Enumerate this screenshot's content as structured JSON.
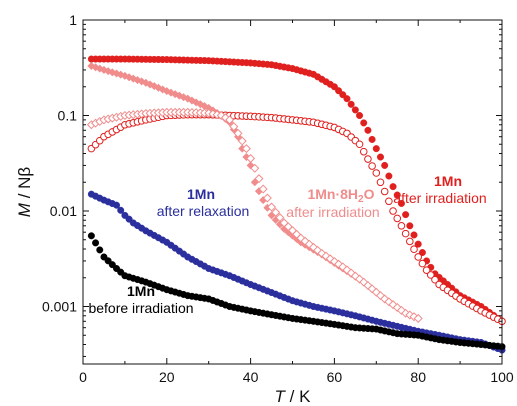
{
  "chart_data": {
    "type": "scatter",
    "title": "",
    "xlabel": {
      "var": "T",
      "unit": " / K"
    },
    "ylabel": {
      "var": "M",
      "unit": " / Nβ"
    },
    "xlim": [
      0,
      100
    ],
    "ylim": [
      0.00025,
      1
    ],
    "yscale": "log",
    "grid": false,
    "x_ticks": [
      0,
      20,
      40,
      60,
      80,
      100
    ],
    "x_tick_labels": [
      "0",
      "20",
      "40",
      "60",
      "80",
      "100"
    ],
    "y_ticks": [
      0.001,
      0.01,
      0.1,
      1
    ],
    "y_tick_labels": [
      "0.001",
      "0.01",
      "0.1",
      "1"
    ],
    "annotations": [
      {
        "id": "before",
        "bold": "1Mn",
        "text": "before irradiation",
        "color": "#000000"
      },
      {
        "id": "relax",
        "bold": "1Mn",
        "text": "after relaxation",
        "color": "#2b2f9e"
      },
      {
        "id": "hydrate",
        "bold_main": "1Mn·8H",
        "bold_sub": "2",
        "bold_tail": "O",
        "text": "after irradiation",
        "color": "#f08c8c"
      },
      {
        "id": "irr",
        "bold": "1Mn",
        "text": "after irradiation",
        "color": "#e0201e"
      }
    ],
    "series": [
      {
        "id": "1mn-irr-filled",
        "color": "#e0201e",
        "marker": "circle-filled",
        "points": [
          [
            2,
            0.39
          ],
          [
            10,
            0.39
          ],
          [
            20,
            0.385
          ],
          [
            30,
            0.375
          ],
          [
            40,
            0.355
          ],
          [
            45,
            0.34
          ],
          [
            50,
            0.31
          ],
          [
            55,
            0.27
          ],
          [
            60,
            0.2
          ],
          [
            63,
            0.15
          ],
          [
            66,
            0.1
          ],
          [
            68,
            0.07
          ],
          [
            70,
            0.045
          ],
          [
            72,
            0.03
          ],
          [
            74,
            0.018
          ],
          [
            76,
            0.012
          ],
          [
            78,
            0.007
          ],
          [
            80,
            0.0045
          ],
          [
            82,
            0.003
          ],
          [
            84,
            0.0022
          ],
          [
            87,
            0.0017
          ],
          [
            90,
            0.0013
          ],
          [
            95,
            0.001
          ],
          [
            100,
            0.0007
          ]
        ]
      },
      {
        "id": "1mn-irr-open",
        "color": "#e0201e",
        "marker": "circle-open",
        "points": [
          [
            2,
            0.045
          ],
          [
            5,
            0.06
          ],
          [
            10,
            0.08
          ],
          [
            15,
            0.09
          ],
          [
            20,
            0.1
          ],
          [
            25,
            0.102
          ],
          [
            30,
            0.102
          ],
          [
            35,
            0.1
          ],
          [
            40,
            0.098
          ],
          [
            45,
            0.095
          ],
          [
            50,
            0.09
          ],
          [
            55,
            0.085
          ],
          [
            60,
            0.075
          ],
          [
            63,
            0.065
          ],
          [
            66,
            0.05
          ],
          [
            68,
            0.035
          ],
          [
            70,
            0.025
          ],
          [
            72,
            0.016
          ],
          [
            74,
            0.01
          ],
          [
            76,
            0.007
          ],
          [
            78,
            0.0048
          ],
          [
            80,
            0.0033
          ],
          [
            82,
            0.0024
          ],
          [
            85,
            0.0017
          ],
          [
            90,
            0.0012
          ],
          [
            95,
            0.0009
          ],
          [
            100,
            0.0007
          ]
        ]
      },
      {
        "id": "hydrate-irr-filled",
        "color": "#f08c8c",
        "marker": "diamond-filled",
        "points": [
          [
            2,
            0.33
          ],
          [
            5,
            0.3
          ],
          [
            10,
            0.26
          ],
          [
            15,
            0.22
          ],
          [
            20,
            0.18
          ],
          [
            25,
            0.15
          ],
          [
            30,
            0.12
          ],
          [
            33,
            0.1
          ],
          [
            35,
            0.085
          ],
          [
            37,
            0.06
          ],
          [
            38,
            0.045
          ],
          [
            40,
            0.03
          ],
          [
            41,
            0.02
          ],
          [
            43,
            0.013
          ],
          [
            45,
            0.009
          ],
          [
            48,
            0.0065
          ],
          [
            52,
            0.0047
          ],
          [
            57,
            0.0035
          ],
          [
            62,
            0.0025
          ],
          [
            67,
            0.0018
          ],
          [
            72,
            0.0012
          ],
          [
            77,
            0.00085
          ],
          [
            80,
            0.00075
          ]
        ]
      },
      {
        "id": "hydrate-irr-open",
        "color": "#f08c8c",
        "marker": "diamond-open",
        "points": [
          [
            2,
            0.08
          ],
          [
            5,
            0.09
          ],
          [
            10,
            0.1
          ],
          [
            15,
            0.105
          ],
          [
            20,
            0.108
          ],
          [
            25,
            0.108
          ],
          [
            30,
            0.106
          ],
          [
            33,
            0.1
          ],
          [
            35,
            0.09
          ],
          [
            37,
            0.065
          ],
          [
            39,
            0.045
          ],
          [
            41,
            0.028
          ],
          [
            43,
            0.017
          ],
          [
            45,
            0.011
          ],
          [
            48,
            0.0075
          ],
          [
            52,
            0.0052
          ],
          [
            57,
            0.0036
          ],
          [
            62,
            0.0026
          ],
          [
            67,
            0.0018
          ],
          [
            72,
            0.0012
          ],
          [
            77,
            0.00085
          ],
          [
            80,
            0.00075
          ]
        ]
      },
      {
        "id": "1mn-relax",
        "color": "#2b2f9e",
        "marker": "circle-filled",
        "points": [
          [
            2,
            0.015
          ],
          [
            5,
            0.013
          ],
          [
            8,
            0.0115
          ],
          [
            10,
            0.009
          ],
          [
            12,
            0.0075
          ],
          [
            15,
            0.0062
          ],
          [
            20,
            0.0047
          ],
          [
            25,
            0.0033
          ],
          [
            30,
            0.0025
          ],
          [
            35,
            0.0021
          ],
          [
            40,
            0.0017
          ],
          [
            45,
            0.0014
          ],
          [
            50,
            0.00115
          ],
          [
            55,
            0.001
          ],
          [
            60,
            0.0009
          ],
          [
            65,
            0.0008
          ],
          [
            70,
            0.0007
          ],
          [
            75,
            0.00062
          ],
          [
            80,
            0.00055
          ],
          [
            85,
            0.0005
          ],
          [
            90,
            0.00045
          ],
          [
            95,
            0.00042
          ],
          [
            100,
            0.00035
          ]
        ]
      },
      {
        "id": "1mn-before",
        "color": "#000000",
        "marker": "circle-filled",
        "points": [
          [
            2,
            0.0055
          ],
          [
            5,
            0.0033
          ],
          [
            8,
            0.0025
          ],
          [
            10,
            0.0021
          ],
          [
            15,
            0.0018
          ],
          [
            20,
            0.0015
          ],
          [
            25,
            0.0013
          ],
          [
            30,
            0.0012
          ],
          [
            35,
            0.001
          ],
          [
            40,
            0.0009
          ],
          [
            45,
            0.00082
          ],
          [
            50,
            0.00075
          ],
          [
            55,
            0.0007
          ],
          [
            60,
            0.00065
          ],
          [
            65,
            0.0006
          ],
          [
            70,
            0.00058
          ],
          [
            75,
            0.00052
          ],
          [
            80,
            0.0005
          ],
          [
            85,
            0.00045
          ],
          [
            90,
            0.00042
          ],
          [
            95,
            0.0004
          ],
          [
            100,
            0.00038
          ]
        ]
      }
    ]
  }
}
